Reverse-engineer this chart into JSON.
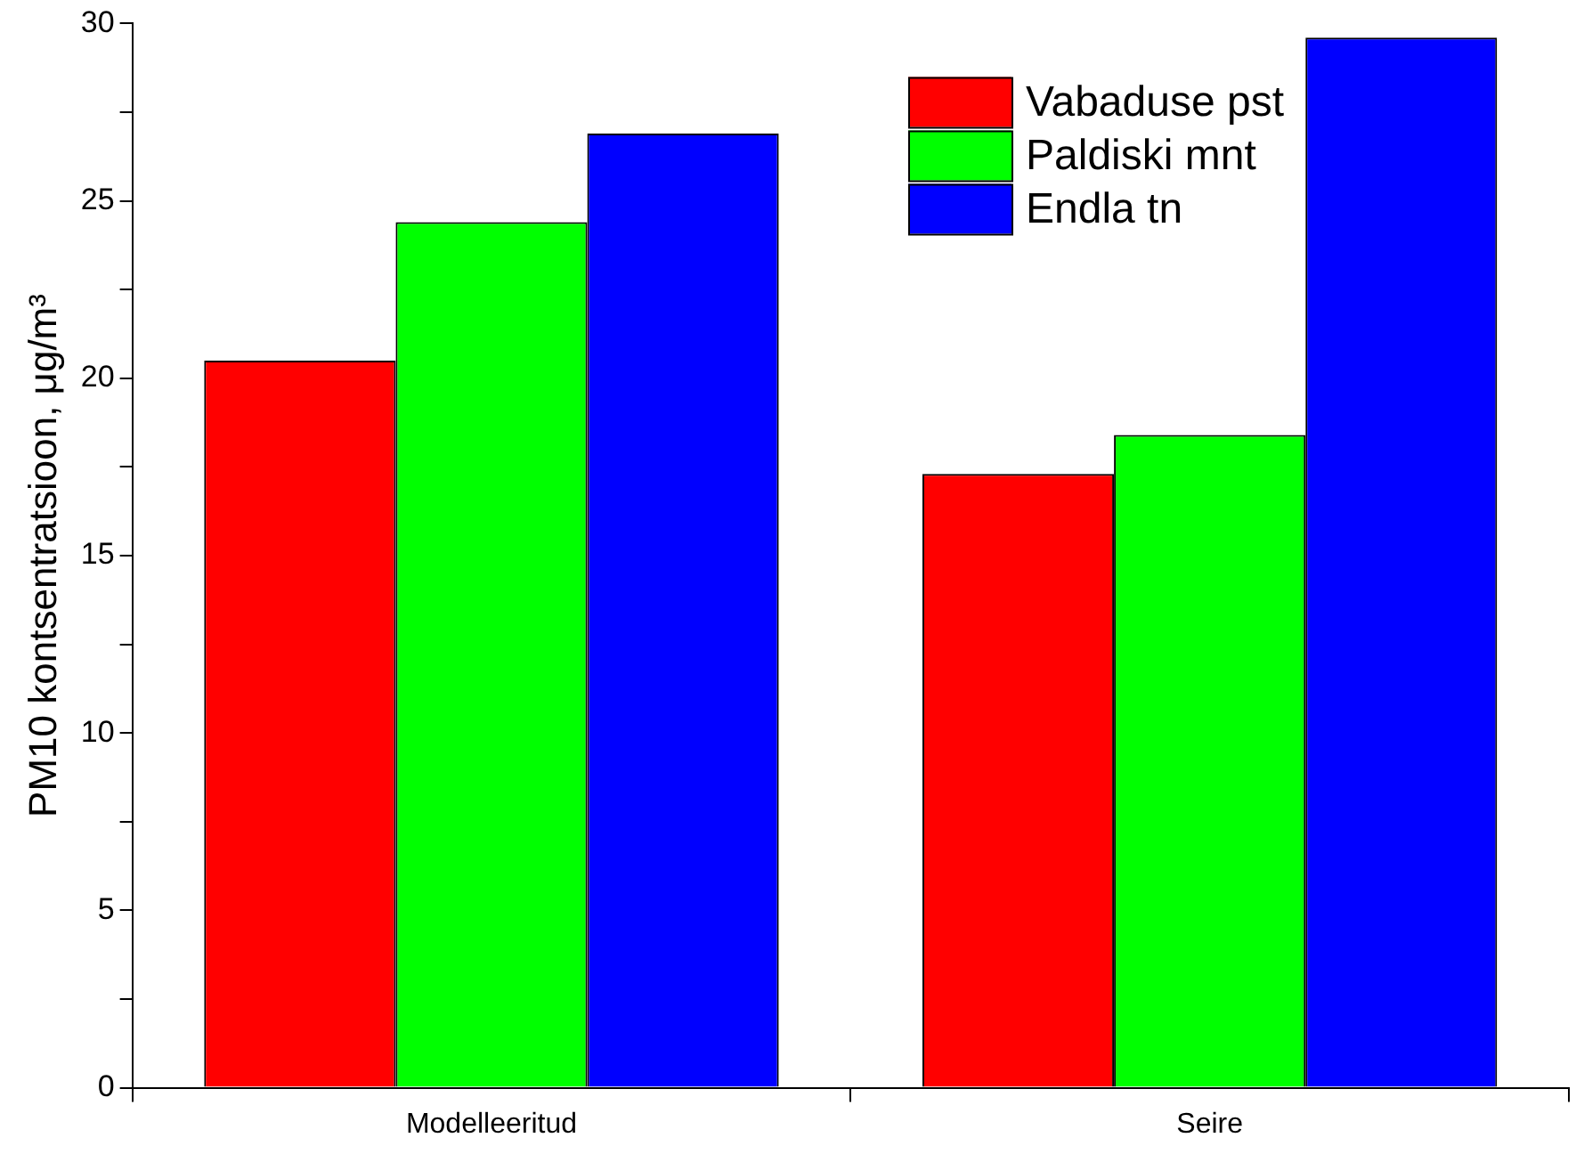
{
  "chart_data": {
    "type": "bar",
    "ylabel": "PM10 kontsentratsioon, μg/m³",
    "categories": [
      "Modelleeritud",
      "Seire"
    ],
    "series": [
      {
        "name": "Vabaduse pst",
        "color": "#ff0000",
        "values": [
          20.5,
          17.3
        ]
      },
      {
        "name": "Paldiski mnt",
        "color": "#00ff00",
        "values": [
          24.4,
          18.4
        ]
      },
      {
        "name": "Endla tn",
        "color": "#0000ff",
        "values": [
          26.9,
          29.6
        ]
      }
    ],
    "ylim": [
      0,
      30
    ],
    "yticks": [
      0,
      {
        "value": 2.5,
        "label": null
      },
      5,
      {
        "value": 7.5,
        "label": null
      },
      10,
      {
        "value": 12.5,
        "label": null
      },
      15,
      {
        "value": 17.5,
        "label": null
      },
      20,
      {
        "value": 22.5,
        "label": null
      },
      25,
      {
        "value": 27.5,
        "label": null
      },
      30
    ],
    "grid": false,
    "legend": "top right"
  }
}
